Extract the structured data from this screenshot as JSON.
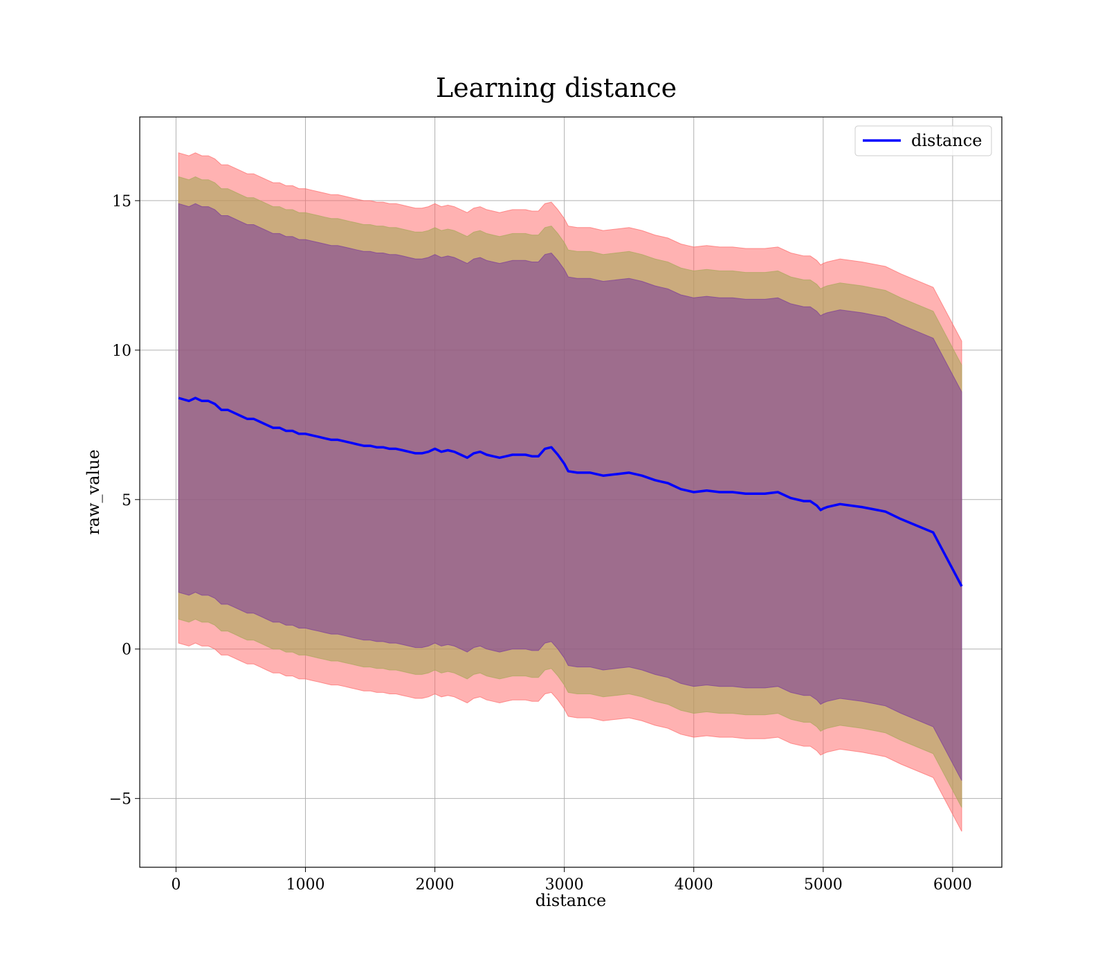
{
  "chart_data": {
    "type": "area",
    "title": "Learning distance",
    "xlabel": "distance",
    "ylabel": "raw_value",
    "xlim": [
      -280,
      6380
    ],
    "ylim": [
      -7.3,
      17.8
    ],
    "xticks": [
      0,
      1000,
      2000,
      3000,
      4000,
      5000,
      6000
    ],
    "xtick_labels": [
      "0",
      "1000",
      "2000",
      "3000",
      "4000",
      "5000",
      "6000"
    ],
    "yticks": [
      -5,
      0,
      5,
      10,
      15
    ],
    "ytick_labels": [
      "−5",
      "0",
      "5",
      "10",
      "15"
    ],
    "grid": true,
    "legend": {
      "entries": [
        "distance"
      ],
      "placement": "top-right"
    },
    "colors": {
      "line": "#0000ff",
      "band_outer": "#ff6666",
      "band_middle": "#a9a65a",
      "band_inner": "#7a3a9a",
      "grid": "#b0b0b0"
    },
    "band_offsets": [
      6.5,
      7.4,
      8.2
    ],
    "series": [
      {
        "name": "distance",
        "x": [
          20,
          100,
          150,
          200,
          250,
          300,
          350,
          400,
          450,
          500,
          550,
          600,
          650,
          700,
          750,
          800,
          850,
          900,
          950,
          1000,
          1050,
          1100,
          1150,
          1200,
          1250,
          1300,
          1350,
          1400,
          1450,
          1500,
          1550,
          1600,
          1650,
          1700,
          1750,
          1800,
          1850,
          1900,
          1950,
          2000,
          2050,
          2100,
          2150,
          2200,
          2250,
          2300,
          2350,
          2400,
          2450,
          2500,
          2550,
          2600,
          2650,
          2700,
          2750,
          2800,
          2850,
          2900,
          2950,
          3000,
          3030,
          3100,
          3200,
          3300,
          3400,
          3500,
          3600,
          3700,
          3750,
          3800,
          3900,
          3950,
          4000,
          4100,
          4200,
          4300,
          4400,
          4500,
          4550,
          4650,
          4750,
          4850,
          4900,
          4950,
          4980,
          5000,
          5030,
          5130,
          5300,
          5480,
          5600,
          5850,
          6070
        ],
        "y": [
          8.4,
          8.3,
          8.4,
          8.3,
          8.3,
          8.2,
          8.0,
          8.0,
          7.9,
          7.8,
          7.7,
          7.7,
          7.6,
          7.5,
          7.4,
          7.4,
          7.3,
          7.3,
          7.2,
          7.2,
          7.15,
          7.1,
          7.05,
          7.0,
          7.0,
          6.95,
          6.9,
          6.85,
          6.8,
          6.8,
          6.75,
          6.75,
          6.7,
          6.7,
          6.65,
          6.6,
          6.55,
          6.55,
          6.6,
          6.7,
          6.6,
          6.65,
          6.6,
          6.5,
          6.4,
          6.55,
          6.6,
          6.5,
          6.45,
          6.4,
          6.45,
          6.5,
          6.5,
          6.5,
          6.45,
          6.45,
          6.7,
          6.75,
          6.5,
          6.2,
          5.95,
          5.9,
          5.9,
          5.8,
          5.85,
          5.9,
          5.8,
          5.65,
          5.6,
          5.55,
          5.35,
          5.3,
          5.25,
          5.3,
          5.25,
          5.25,
          5.2,
          5.2,
          5.2,
          5.25,
          5.05,
          4.95,
          4.95,
          4.8,
          4.65,
          4.7,
          4.75,
          4.85,
          4.75,
          4.6,
          4.35,
          3.9,
          2.1
        ]
      }
    ]
  }
}
